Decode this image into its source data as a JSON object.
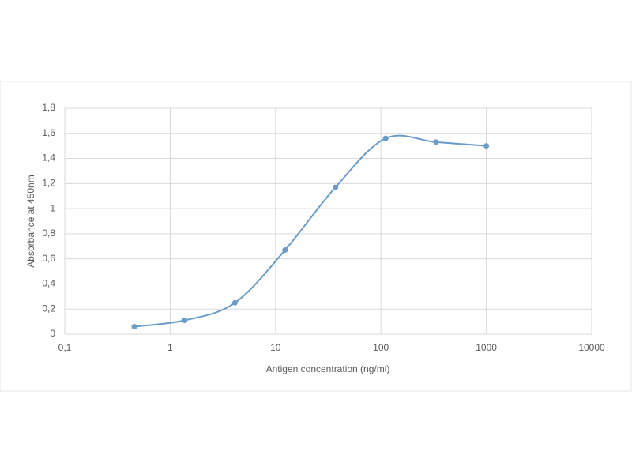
{
  "chart_data": {
    "type": "line",
    "x_label": "Antigen concentration (ng/ml)",
    "y_label": "Absorbance at 450nm",
    "x": [
      0.457,
      1.37,
      4.12,
      12.3,
      37,
      111,
      333,
      1000
    ],
    "series": [
      {
        "color": "#6a9cc8",
        "values": [
          0.06,
          0.11,
          0.25,
          0.67,
          1.17,
          1.56,
          1.53,
          1.5
        ]
      }
    ],
    "x_scale": "log",
    "smooth": true,
    "grid": true,
    "xlim": [
      0.1,
      10000
    ],
    "xticks": [
      {
        "value": 0.1,
        "label": "0,1"
      },
      1,
      10,
      100,
      1000,
      10000
    ],
    "ylim": [
      0,
      1.8
    ],
    "yticks": [
      0,
      {
        "value": 0.2,
        "label": "0,2"
      },
      {
        "value": 0.4,
        "label": "0,4"
      },
      {
        "value": 0.6,
        "label": "0,6"
      },
      {
        "value": 0.8,
        "label": "0,8"
      },
      1,
      {
        "value": 1.2,
        "label": "1,2"
      },
      {
        "value": 1.4,
        "label": "1,4"
      },
      {
        "value": 1.6,
        "label": "1,6"
      },
      {
        "value": 1.8,
        "label": "1,8"
      }
    ]
  }
}
